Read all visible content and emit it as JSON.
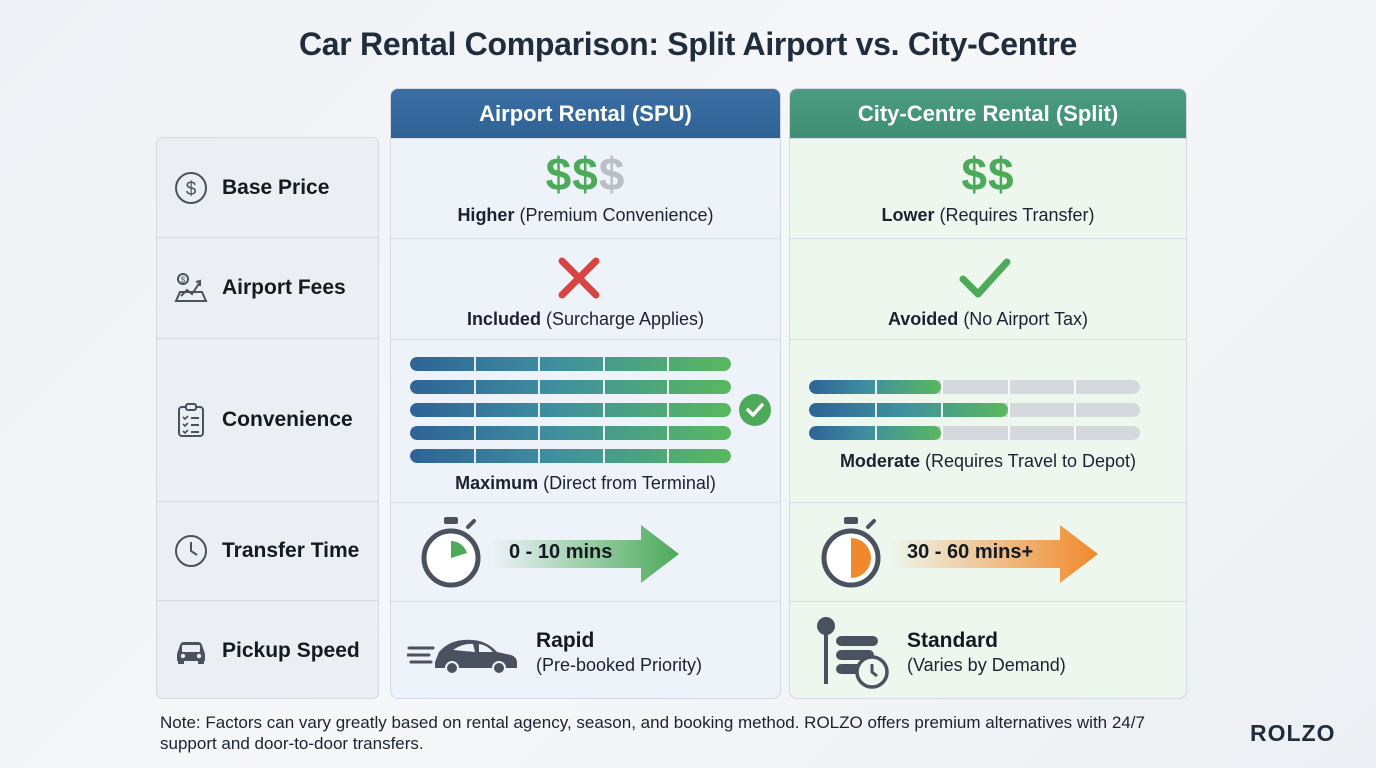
{
  "title": "Car Rental Comparison: Split Airport vs. City-Centre",
  "labels": [
    {
      "text": "Base Price",
      "icon": "dollar-circle-icon"
    },
    {
      "text": "Airport Fees",
      "icon": "fees-chart-icon"
    },
    {
      "text": "Convenience",
      "icon": "clipboard-checklist-icon"
    },
    {
      "text": "Transfer Time",
      "icon": "clock-icon"
    },
    {
      "text": "Pickup Speed",
      "icon": "car-icon"
    }
  ],
  "airport": {
    "header": "Airport Rental (SPU)",
    "base_price": {
      "symbols_active": "$$",
      "symbols_inactive": "$",
      "bold": "Higher",
      "rest": "(Premium Convenience)"
    },
    "fees": {
      "icon": "cross-icon",
      "bold": "Included",
      "rest": "(Surcharge Applies)"
    },
    "convenience": {
      "levels": [
        1,
        1,
        1,
        1,
        1
      ],
      "bold": "Maximum",
      "rest": "(Direct from Terminal)"
    },
    "transfer": {
      "text": "0 - 10 mins"
    },
    "pickup": {
      "title": "Rapid",
      "sub": "(Pre-booked Priority)"
    }
  },
  "city": {
    "header": "City-Centre Rental (Split)",
    "base_price": {
      "symbols_active": "$$",
      "symbols_inactive": "",
      "bold": "Lower",
      "rest": "(Requires Transfer)"
    },
    "fees": {
      "icon": "check-icon",
      "bold": "Avoided",
      "rest": "(No Airport Tax)"
    },
    "convenience": {
      "levels": [
        0.4,
        0.6,
        0.4
      ],
      "bold": "Moderate",
      "rest": "(Requires Travel to Depot)"
    },
    "transfer": {
      "text": "30 - 60 mins+"
    },
    "pickup": {
      "title": "Standard",
      "sub": "(Varies by Demand)"
    }
  },
  "colors": {
    "airport_head": "#2f6396",
    "city_head": "#3f8f74",
    "green": "#4caa5a",
    "red": "#d64541",
    "orange": "#f0892b"
  },
  "note": "Note: Factors can vary greatly based on rental agency, season, and booking method. ROLZO offers premium alternatives with 24/7 support and door-to-door transfers.",
  "brand": "ROLZO"
}
